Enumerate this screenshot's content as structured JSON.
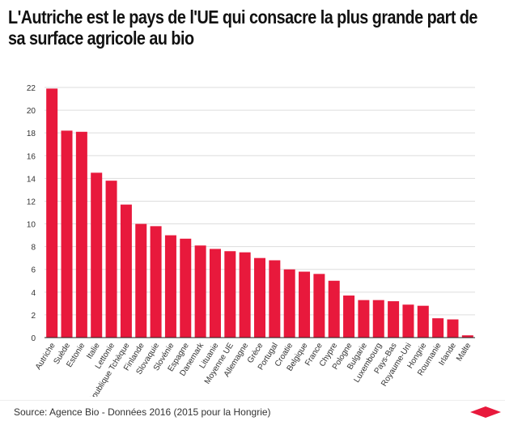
{
  "title": "L'Autriche est le pays de l'UE qui consacre la plus grande part de sa surface agricole au bio",
  "source": "Source: Agence Bio - Données 2016 (2015 pour la Hongrie)",
  "colors": {
    "bar": "#e8193c",
    "grid": "#dddddd",
    "axis": "#222222",
    "logo": "#e8193c"
  },
  "logo_icon": "red-diamond-logo-icon",
  "chart_data": {
    "type": "bar",
    "categories": [
      "Autriche",
      "Suède",
      "Estonie",
      "Italie",
      "Lettonie",
      "République Tchèque",
      "Finlande",
      "Slovaquie",
      "Slovénie",
      "Espagne",
      "Danemark",
      "Lituanie",
      "Moyenne UE",
      "Allemagne",
      "Grèce",
      "Portugal",
      "Croatie",
      "Belgique",
      "France",
      "Chypre",
      "Pologne",
      "Bulgarie",
      "Luxembourg",
      "Pays-Bas",
      "Royaume-Uni",
      "Hongrie",
      "Roumanie",
      "Irlande",
      "Malte"
    ],
    "values": [
      21.9,
      18.2,
      18.1,
      14.5,
      13.8,
      11.7,
      10.0,
      9.8,
      9.0,
      8.7,
      8.1,
      7.8,
      7.6,
      7.5,
      7.0,
      6.8,
      6.0,
      5.8,
      5.6,
      5.0,
      3.7,
      3.3,
      3.3,
      3.2,
      2.9,
      2.8,
      1.7,
      1.6,
      0.2
    ],
    "yticks": [
      0,
      2,
      4,
      6,
      8,
      10,
      12,
      14,
      16,
      18,
      20,
      22
    ],
    "ylim": [
      0,
      22
    ],
    "grid": true,
    "xlabel": "",
    "ylabel": ""
  }
}
